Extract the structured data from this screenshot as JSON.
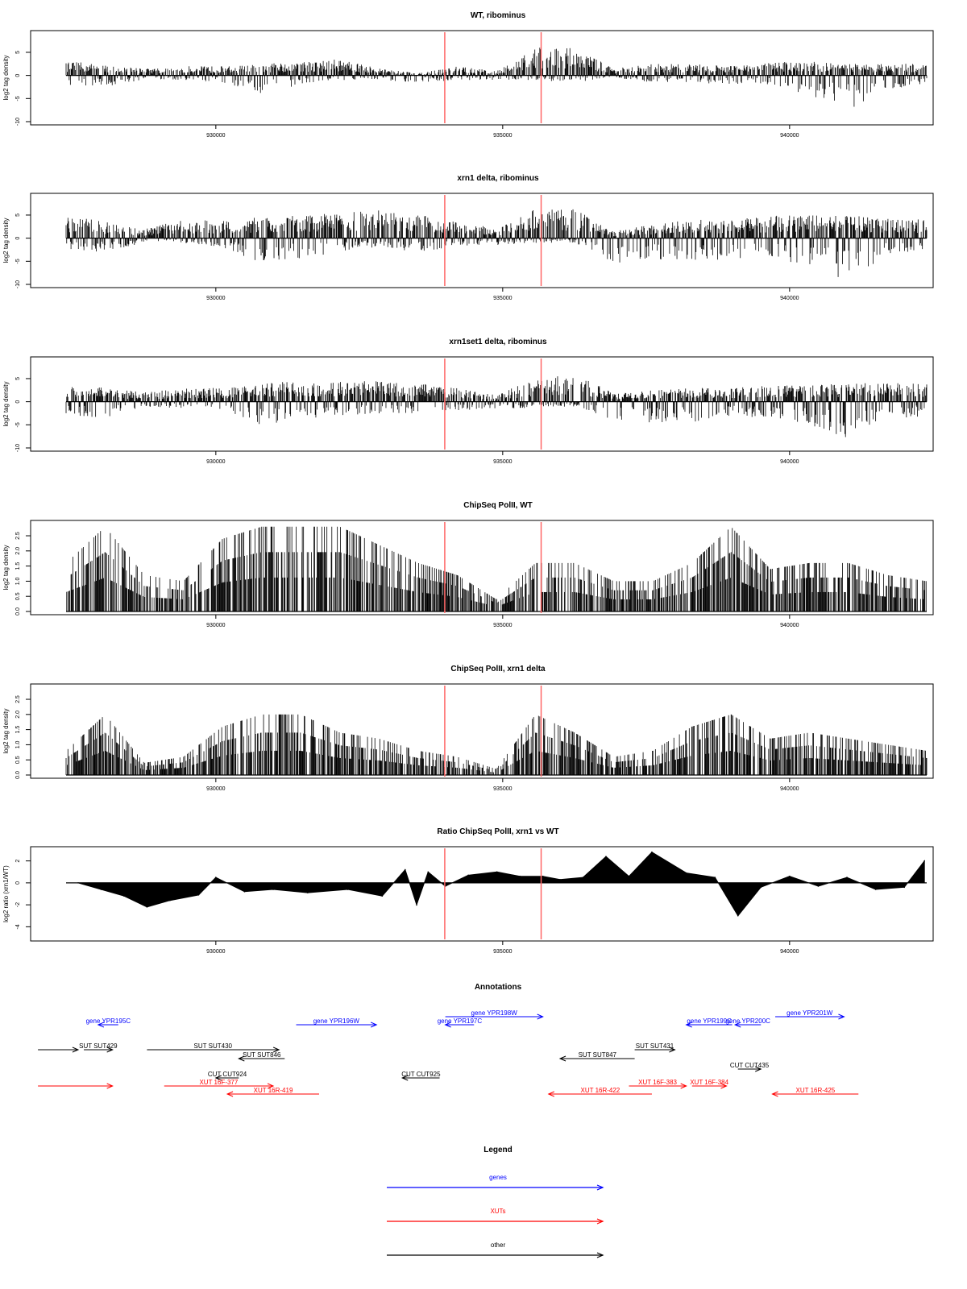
{
  "colors": {
    "gene": "#0000ff",
    "xut": "#ff0000",
    "other": "#000000",
    "marker": "#ff6666",
    "bar": "#000000"
  },
  "x_ticks": [
    930000,
    935000,
    940000
  ],
  "markers": [
    933990,
    935670
  ],
  "chart_data": [
    {
      "type": "bar",
      "title": "WT, ribominus",
      "ylabel": "log2 tag density",
      "ylim": [
        -10,
        9
      ],
      "yticks": [
        "-10",
        "-5",
        "0",
        "5"
      ],
      "xlim": [
        927390,
        942390
      ],
      "signed": true,
      "series_profile": {
        "pos": [
          3,
          2.5,
          1.5,
          2,
          2,
          2.5,
          3,
          3.5,
          1.5,
          0.5,
          2,
          1,
          6,
          6,
          1.5,
          2.5,
          2.5,
          2,
          3,
          3,
          2.5,
          2.5,
          2.5
        ],
        "neg": [
          -2,
          -2.5,
          -1,
          -1,
          -1.5,
          -4,
          -2,
          -1,
          -1,
          -1.5,
          -1,
          -1,
          -1,
          -1.5,
          -0.5,
          -1.5,
          -1.5,
          -2,
          -2,
          -4.5,
          -7.5,
          -3,
          -2
        ]
      }
    },
    {
      "type": "bar",
      "title": "xrn1 delta, ribominus",
      "ylabel": "log2 tag density",
      "ylim": [
        -10,
        9
      ],
      "yticks": [
        "-10",
        "-5",
        "0",
        "5"
      ],
      "xlim": [
        927390,
        942390
      ],
      "signed": true,
      "series_profile": {
        "pos": [
          5,
          3.5,
          2,
          4,
          4,
          4.5,
          5,
          5.5,
          6,
          5,
          4,
          2,
          6.5,
          6.5,
          1.5,
          3,
          4,
          4,
          5,
          5,
          5,
          4.5,
          4
        ],
        "neg": [
          -2.5,
          -3,
          -1,
          -1,
          -2,
          -5.5,
          -4.5,
          -3,
          -2,
          -3,
          -2,
          -1.5,
          -1,
          -1,
          -5.5,
          -5,
          -5,
          -4.5,
          -4.5,
          -7,
          -9,
          -4,
          -3
        ]
      }
    },
    {
      "type": "bar",
      "title": "xrn1set1 delta, ribominus",
      "ylabel": "log2 tag density",
      "ylim": [
        -10,
        9
      ],
      "yticks": [
        "-10",
        "-5",
        "0",
        "5"
      ],
      "xlim": [
        927390,
        942390
      ],
      "signed": true,
      "series_profile": {
        "pos": [
          3.5,
          3,
          2,
          3,
          3,
          4,
          4.5,
          4.5,
          4.5,
          4,
          3,
          1.5,
          5,
          6,
          2,
          2.5,
          3,
          3,
          3.5,
          3.5,
          4,
          4,
          4
        ],
        "neg": [
          -3,
          -3.5,
          -1,
          -1.5,
          -2,
          -6,
          -4,
          -3,
          -2.5,
          -2.5,
          -2,
          -1.5,
          -1.5,
          -1,
          -4,
          -4.5,
          -4.5,
          -3.5,
          -3.5,
          -5,
          -8,
          -4,
          -3
        ]
      }
    },
    {
      "type": "bar",
      "title": "ChipSeq PolII, WT",
      "ylabel": "log2 tag density",
      "ylim": [
        0,
        2.9
      ],
      "yticks": [
        "0.0",
        "0.5",
        "1.0",
        "1.5",
        "2.0",
        "2.5"
      ],
      "xlim": [
        927390,
        942390
      ],
      "signed": false,
      "series_profile": {
        "pos": [
          1.6,
          2.8,
          1.2,
          1.0,
          2.4,
          2.8,
          2.8,
          2.8,
          2.2,
          1.6,
          1.2,
          0.4,
          1.6,
          1.6,
          1.0,
          1.0,
          1.6,
          2.8,
          1.4,
          1.6,
          1.6,
          1.2,
          1.0
        ],
        "neg": []
      }
    },
    {
      "type": "bar",
      "title": "ChipSeq PolII, xrn1 delta",
      "ylabel": "log2 tag density",
      "ylim": [
        0,
        2.9
      ],
      "yticks": [
        "0.0",
        "0.5",
        "1.0",
        "1.5",
        "2.0",
        "2.5"
      ],
      "xlim": [
        927390,
        942390
      ],
      "signed": false,
      "series_profile": {
        "pos": [
          0.8,
          2.0,
          0.4,
          0.6,
          1.6,
          2.0,
          2.0,
          1.4,
          1.2,
          0.8,
          0.6,
          0.2,
          2.0,
          1.4,
          0.6,
          0.8,
          1.6,
          2.0,
          1.2,
          1.4,
          1.2,
          1.0,
          0.8
        ],
        "neg": []
      }
    },
    {
      "type": "area",
      "title": "Ratio ChipSeq PolII, xrn1 vs WT",
      "ylabel": "log2 ratio (xrn1/WT)",
      "ylim": [
        -5,
        3
      ],
      "yticks": [
        "-4",
        "-2",
        "0",
        "2"
      ],
      "xlim": [
        927390,
        942390
      ],
      "signed": true,
      "x": [
        927600,
        928000,
        928400,
        928800,
        929200,
        929700,
        930000,
        930500,
        931000,
        931600,
        932300,
        932900,
        933300,
        933500,
        933700,
        934000,
        934400,
        934900,
        935300,
        935700,
        936000,
        936400,
        936800,
        937200,
        937600,
        938200,
        938700,
        939100,
        939500,
        940000,
        940500,
        941000,
        941500,
        942000,
        942350
      ],
      "values": [
        0.0,
        -0.6,
        -1.2,
        -2.2,
        -1.6,
        -1.1,
        0.5,
        -0.8,
        -0.6,
        -0.9,
        -0.6,
        -1.2,
        1.2,
        -2.0,
        1.0,
        -0.3,
        0.7,
        1.0,
        0.6,
        0.6,
        0.3,
        0.5,
        2.4,
        0.6,
        2.8,
        0.9,
        0.5,
        -3.0,
        -0.4,
        0.6,
        -0.3,
        0.5,
        -0.6,
        -0.4,
        2.0
      ]
    }
  ],
  "annotations": {
    "title": "Annotations",
    "features": [
      {
        "kind": "gene",
        "label": "gene YPR195C",
        "start": 927950,
        "end": 928300,
        "dir": "left",
        "row": 0
      },
      {
        "kind": "gene",
        "label": "gene YPR196W",
        "start": 931400,
        "end": 932800,
        "dir": "right",
        "row": 0
      },
      {
        "kind": "gene",
        "label": "gene YPR197C",
        "start": 934000,
        "end": 934500,
        "dir": "left",
        "row": 0
      },
      {
        "kind": "gene",
        "label": "gene YPR198W",
        "start": 934000,
        "end": 935700,
        "dir": "right",
        "row": -1
      },
      {
        "kind": "gene",
        "label": "gene YPR199C",
        "start": 938200,
        "end": 939000,
        "dir": "left",
        "row": 0
      },
      {
        "kind": "gene",
        "label": "gene YPR200C",
        "start": 939050,
        "end": 939500,
        "dir": "left",
        "row": 0
      },
      {
        "kind": "gene",
        "label": "gene YPR201W",
        "start": 939750,
        "end": 940950,
        "dir": "right",
        "row": -1
      },
      {
        "kind": "other",
        "label": "",
        "start": 926900,
        "end": 927600,
        "dir": "right",
        "row": 3
      },
      {
        "kind": "other",
        "label": "SUT SUT429",
        "start": 927700,
        "end": 928200,
        "dir": "right",
        "row": 3
      },
      {
        "kind": "other",
        "label": "SUT SUT430",
        "start": 928800,
        "end": 931100,
        "dir": "right",
        "row": 3
      },
      {
        "kind": "other",
        "label": "SUT SUT846",
        "start": 930400,
        "end": 931200,
        "dir": "left",
        "row": 4
      },
      {
        "kind": "other",
        "label": "CUT CUT924",
        "start": 930000,
        "end": 930400,
        "dir": "left",
        "row": 6
      },
      {
        "kind": "other",
        "label": "CUT CUT925",
        "start": 933250,
        "end": 933900,
        "dir": "left",
        "row": 6
      },
      {
        "kind": "other",
        "label": "SUT SUT847",
        "start": 936000,
        "end": 937300,
        "dir": "left",
        "row": 4
      },
      {
        "kind": "other",
        "label": "SUT SUT431",
        "start": 937300,
        "end": 938000,
        "dir": "right",
        "row": 3
      },
      {
        "kind": "other",
        "label": "CUT CUT435",
        "start": 939100,
        "end": 939500,
        "dir": "right",
        "row": 5
      },
      {
        "kind": "xut",
        "label": "",
        "start": 926900,
        "end": 928200,
        "dir": "right",
        "row": 7
      },
      {
        "kind": "xut",
        "label": "XUT 16F-377",
        "start": 929100,
        "end": 931000,
        "dir": "right",
        "row": 7
      },
      {
        "kind": "xut",
        "label": "XUT 16R-419",
        "start": 930200,
        "end": 931800,
        "dir": "left",
        "row": 8
      },
      {
        "kind": "xut",
        "label": "XUT 16R-422",
        "start": 935800,
        "end": 937600,
        "dir": "left",
        "row": 8
      },
      {
        "kind": "xut",
        "label": "XUT 16F-383",
        "start": 937200,
        "end": 938200,
        "dir": "right",
        "row": 7
      },
      {
        "kind": "xut",
        "label": "XUT 16F-384",
        "start": 938300,
        "end": 938900,
        "dir": "right",
        "row": 7
      },
      {
        "kind": "xut",
        "label": "XUT 16R-425",
        "start": 939700,
        "end": 941200,
        "dir": "left",
        "row": 8
      }
    ]
  },
  "legend": {
    "title": "Legend",
    "items": [
      {
        "label": "genes",
        "kind": "gene"
      },
      {
        "label": "XUTs",
        "kind": "xut"
      },
      {
        "label": "other",
        "kind": "other"
      }
    ]
  }
}
